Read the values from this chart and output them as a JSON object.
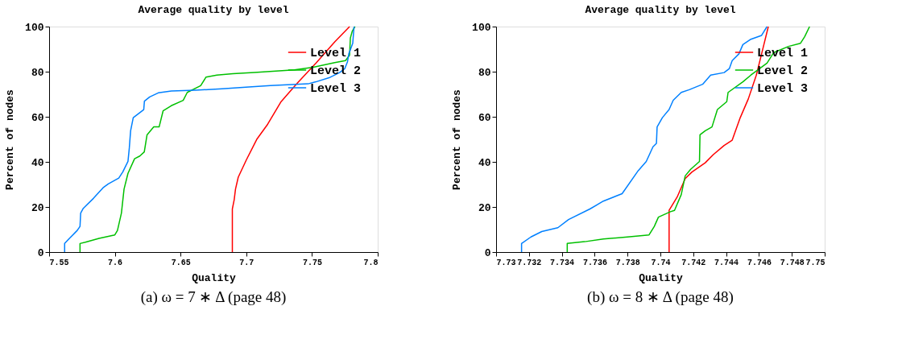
{
  "chart_data": [
    {
      "type": "line",
      "title": "Average quality by level",
      "xlabel": "Quality",
      "ylabel": "Percent of nodes",
      "annotations": [
        "(a) ω = 7 ∗ Δ (page 48)"
      ],
      "xlim": [
        7.55,
        7.8
      ],
      "xticks": [
        7.55,
        7.6,
        7.65,
        7.7,
        7.75,
        7.8
      ],
      "ylim": [
        0,
        100
      ],
      "yticks": [
        0,
        20,
        40,
        60,
        80,
        100
      ],
      "grid": false,
      "legend": "top right",
      "marker": "none",
      "line_style": "solid",
      "series": [
        {
          "name": "Level 1",
          "color": "#ff0000",
          "x": [
            7.6894,
            7.6894,
            7.6908,
            7.6918,
            7.6939,
            7.7,
            7.7082,
            7.7163,
            7.7265,
            7.7388,
            7.7531,
            7.7673,
            7.7786
          ],
          "values": [
            0,
            19.1,
            23.2,
            27.9,
            33.2,
            40.8,
            50.2,
            56.7,
            66.7,
            74.9,
            83.8,
            93.2,
            100
          ]
        },
        {
          "name": "Level 2",
          "color": "#00c000",
          "x": [
            7.5735,
            7.5735,
            7.5776,
            7.588,
            7.6,
            7.602,
            7.605,
            7.607,
            7.61,
            7.615,
            7.619,
            7.6224,
            7.6245,
            7.6296,
            7.6337,
            7.6367,
            7.6429,
            7.652,
            7.6551,
            7.6653,
            7.6694,
            7.6776,
            7.6898,
            7.7061,
            7.7367,
            7.751,
            7.7673,
            7.7755,
            7.7786,
            7.7792,
            7.7806,
            7.7827
          ],
          "values": [
            0,
            3.8,
            4.4,
            6.1,
            7.6,
            9.6,
            17.3,
            27.9,
            34.9,
            41.4,
            42.6,
            44.4,
            52,
            55.5,
            55.5,
            62.6,
            64.9,
            67.3,
            70.8,
            73.8,
            77.6,
            78.5,
            79.1,
            79.6,
            80.8,
            82,
            84,
            84.9,
            87.3,
            94.9,
            97.9,
            100
          ]
        },
        {
          "name": "Level 3",
          "color": "#0080ff",
          "x": [
            7.5618,
            7.5618,
            7.565,
            7.5714,
            7.5735,
            7.574,
            7.576,
            7.5837,
            7.591,
            7.595,
            7.603,
            7.606,
            7.61,
            7.611,
            7.612,
            7.614,
            7.618,
            7.622,
            7.6225,
            7.6265,
            7.633,
            7.643,
            7.6612,
            7.6816,
            7.702,
            7.7184,
            7.747,
            7.753,
            7.763,
            7.771,
            7.775,
            7.777,
            7.778,
            7.781,
            7.782
          ],
          "values": [
            0,
            3.8,
            5.8,
            9.6,
            11.4,
            17.3,
            19.4,
            23.8,
            28.5,
            30.2,
            32.8,
            35.5,
            40.2,
            46.1,
            53.8,
            59.6,
            61.4,
            63.2,
            66.9,
            68.8,
            70.6,
            71.4,
            71.8,
            72.4,
            73.2,
            73.8,
            74.6,
            75.5,
            77.3,
            79.6,
            81.4,
            84.4,
            87.9,
            92.6,
            100
          ]
        }
      ]
    },
    {
      "type": "line",
      "title": "Average quality by level",
      "xlabel": "Quality",
      "ylabel": "Percent of nodes",
      "annotations": [
        "(b) ω = 8 ∗ Δ (page 48)"
      ],
      "xlim": [
        7.73,
        7.75
      ],
      "xticks": [
        7.73,
        7.732,
        7.734,
        7.736,
        7.738,
        7.74,
        7.742,
        7.744,
        7.746,
        7.748,
        7.75
      ],
      "ylim": [
        0,
        100
      ],
      "yticks": [
        0,
        20,
        40,
        60,
        80,
        100
      ],
      "grid": false,
      "legend": "top right",
      "marker": "none",
      "line_style": "solid",
      "series": [
        {
          "name": "Level 1",
          "color": "#ff0000",
          "x": [
            7.74053,
            7.74053,
            7.74102,
            7.74151,
            7.74192,
            7.74273,
            7.74322,
            7.74388,
            7.74437,
            7.74486,
            7.74535,
            7.74584,
            7.74616,
            7.74657
          ],
          "values": [
            0,
            18.5,
            24.4,
            32.6,
            35.5,
            39.6,
            43.2,
            47.3,
            49.6,
            59.6,
            67.9,
            78.5,
            87.9,
            100
          ]
        },
        {
          "name": "Level 2",
          "color": "#00c000",
          "x": [
            7.73433,
            7.73433,
            7.73539,
            7.73653,
            7.738,
            7.73931,
            7.73963,
            7.73988,
            7.74061,
            7.74086,
            7.74127,
            7.74151,
            7.74184,
            7.74238,
            7.74241,
            7.74273,
            7.74314,
            7.74347,
            7.74404,
            7.74412,
            7.74502,
            7.74551,
            7.74649,
            7.7469,
            7.7478,
            7.74853,
            7.74878,
            7.74908
          ],
          "values": [
            0,
            3.8,
            4.6,
            5.8,
            6.7,
            7.6,
            11.4,
            15.5,
            17.9,
            18.5,
            25.5,
            33.8,
            36.7,
            40.2,
            52,
            53.8,
            55.5,
            63.2,
            66.7,
            70.8,
            75.5,
            78.5,
            83.8,
            88.5,
            91.2,
            92.6,
            95.5,
            100
          ]
        },
        {
          "name": "Level 3",
          "color": "#0080ff",
          "x": [
            7.73155,
            7.73155,
            7.73212,
            7.73278,
            7.73376,
            7.73441,
            7.73571,
            7.73653,
            7.73767,
            7.73865,
            7.73914,
            7.73955,
            7.73976,
            7.7398,
            7.74012,
            7.74053,
            7.74078,
            7.74127,
            7.74176,
            7.74257,
            7.74306,
            7.74388,
            7.7442,
            7.74437,
            7.74478,
            7.74502,
            7.74551,
            7.74616,
            7.74649
          ],
          "values": [
            0,
            3.8,
            6.7,
            9.1,
            10.8,
            14.4,
            19.1,
            22.6,
            25.9,
            36.1,
            40.2,
            46.7,
            48.2,
            55.5,
            59.6,
            63.2,
            67.3,
            70.8,
            72,
            74.4,
            78.5,
            79.6,
            81.4,
            84.9,
            87.9,
            92,
            94.4,
            96.1,
            100
          ]
        }
      ]
    }
  ]
}
